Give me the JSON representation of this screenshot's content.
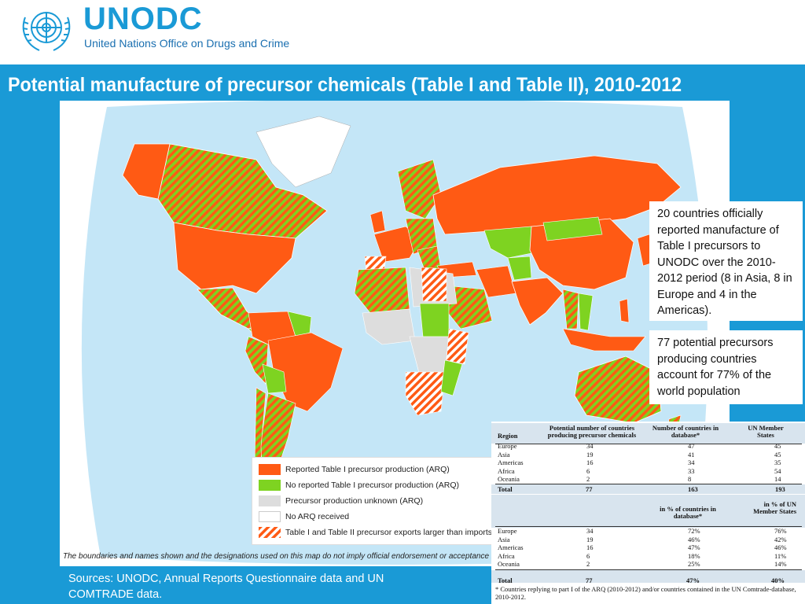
{
  "header": {
    "logo_text": "UNODC",
    "logo_subtitle": "United Nations Office on Drugs and Crime"
  },
  "title": "Potential manufacture of precursor chemicals (Table I and Table II), 2010-2012",
  "legend": {
    "items": [
      {
        "label": "Reported Table I precursor production (ARQ)",
        "color": "#ff5a14"
      },
      {
        "label": "No reported  Table I precursor production (ARQ)",
        "color": "#7ed321"
      },
      {
        "label": "Precursor production unknown (ARQ)",
        "color": "#dddddd"
      },
      {
        "label": "No ARQ received",
        "color": "#ffffff"
      },
      {
        "label": "Table I and Table II precursor exports larger than imports",
        "color": "#ff5a14"
      }
    ]
  },
  "disclaimer": "The boundaries and names shown and the designations used on this map do not imply official endorsement or acceptance by the United Nations.",
  "callouts": {
    "first": "20 countries officially reported manufacture of Table I precursors to UNODC  over the 2010-2012 period (8 in Asia, 8 in Europe and 4 in the Americas).",
    "second": "77 potential precursors producing countries account for 77% of the world population"
  },
  "sources": "Sources: UNODC, Annual  Reports Questionnaire data and UN COMTRADE data.",
  "table": {
    "head1": {
      "region": "Region",
      "potential": "Potential number of countries producing precursor chemicals",
      "in_db": "Number of countries in database*",
      "un": "UN Member States"
    },
    "rows1": [
      {
        "region": "Europe",
        "potential": "34",
        "in_db": "47",
        "un": "45"
      },
      {
        "region": "Asia",
        "potential": "19",
        "in_db": "41",
        "un": "45"
      },
      {
        "region": "Americas",
        "potential": "16",
        "in_db": "34",
        "un": "35"
      },
      {
        "region": "Africa",
        "potential": "6",
        "in_db": "33",
        "un": "54"
      },
      {
        "region": "Oceania",
        "potential": "2",
        "in_db": "8",
        "un": "14"
      }
    ],
    "total1": {
      "region": "Total",
      "potential": "77",
      "in_db": "163",
      "un": "193"
    },
    "head2": {
      "in_db_pct": "in % of countries in database*",
      "un_pct": "in % of UN Member States"
    },
    "rows2": [
      {
        "region": "Europe",
        "potential": "34",
        "in_db": "72%",
        "un": "76%"
      },
      {
        "region": "Asia",
        "potential": "19",
        "in_db": "46%",
        "un": "42%"
      },
      {
        "region": "Americas",
        "potential": "16",
        "in_db": "47%",
        "un": "46%"
      },
      {
        "region": "Africa",
        "potential": "6",
        "in_db": "18%",
        "un": "11%"
      },
      {
        "region": "Oceania",
        "potential": "2",
        "in_db": "25%",
        "un": "14%"
      }
    ],
    "total2": {
      "region": "Total",
      "potential": "77",
      "in_db": "47%",
      "un": "40%"
    },
    "footnote": "* Countries replying to part I of the ARQ (2010-2012) and/or countries contained in the UN Comtrade-database, 2010-2012."
  },
  "colors": {
    "brand_blue": "#1a9ad6",
    "ocean": "#c4e6f7",
    "reported": "#ff5a14",
    "not_reported": "#7ed321",
    "unknown": "#dddddd"
  }
}
